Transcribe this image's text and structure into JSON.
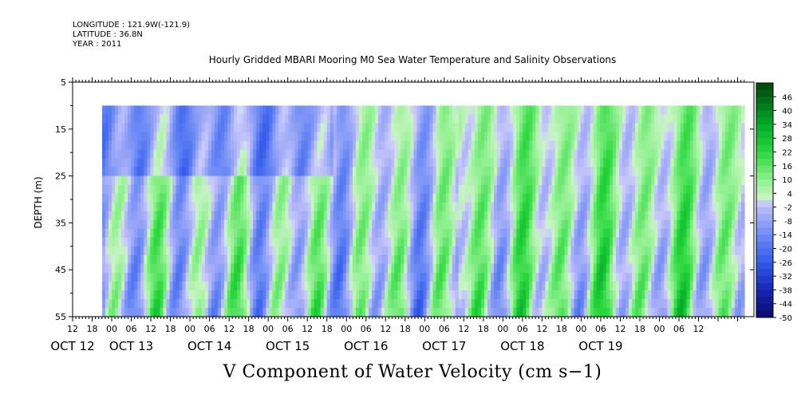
{
  "header": {
    "longitude": "LONGITUDE : 121.9W(-121.9)",
    "latitude": "LATITUDE : 36.8N",
    "year": "YEAR : 2011"
  },
  "chart_data": {
    "type": "heatmap",
    "title": "Hourly Gridded MBARI Mooring M0 Sea Water Temperature and Salinity Observations",
    "xlabel": "V Component of Water Velocity (cm s−1)",
    "ylabel": "DEPTH (m)",
    "y_range": [
      5,
      55
    ],
    "y_ticks": [
      5,
      15,
      25,
      35,
      45,
      55
    ],
    "y_inverted": true,
    "x_hour_ticks": [
      "12",
      "18",
      "00",
      "06",
      "12",
      "18",
      "00",
      "06",
      "12",
      "18",
      "00",
      "06",
      "12",
      "18",
      "00",
      "06",
      "12",
      "18",
      "00",
      "06",
      "12",
      "18",
      "00",
      "06",
      "12",
      "18",
      "00",
      "06",
      "12",
      "18",
      "00",
      "06",
      "12"
    ],
    "x_day_labels": [
      "OCT 12",
      "OCT 13",
      "OCT 14",
      "OCT 15",
      "OCT 16",
      "OCT 17",
      "OCT 18",
      "OCT 19"
    ],
    "data_depth_range": [
      10,
      55
    ],
    "colorbar_labels": [
      "46",
      "40",
      "34",
      "28",
      "22",
      "16",
      "10",
      "4",
      "-2",
      "-8",
      "-14",
      "-20",
      "-26",
      "-32",
      "-38",
      "-44",
      "-50"
    ],
    "colorbar_range": [
      -50,
      52
    ],
    "colors": {
      "positive": "#00c000",
      "light_positive": "#a8f0a0",
      "light_negative": "#b4b4f8",
      "negative": "#3c64e8"
    }
  }
}
